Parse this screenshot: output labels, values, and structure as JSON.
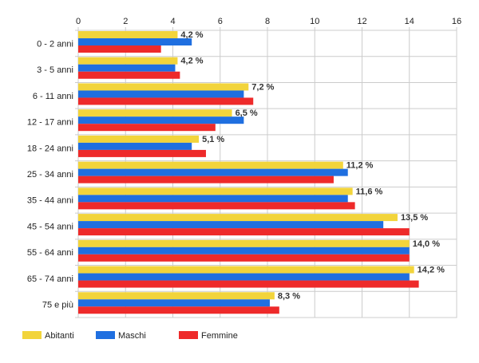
{
  "chart_data": {
    "type": "bar",
    "orientation": "horizontal",
    "categories": [
      "0 - 2 anni",
      "3 - 5 anni",
      "6 - 11 anni",
      "12 - 17 anni",
      "18 - 24 anni",
      "25 - 34 anni",
      "35 - 44 anni",
      "45 - 54 anni",
      "55 - 64 anni",
      "65 - 74 anni",
      "75 e più"
    ],
    "series": [
      {
        "name": "Abitanti",
        "color": "#f2d43b",
        "values": [
          4.2,
          4.2,
          7.2,
          6.5,
          5.1,
          11.2,
          11.6,
          13.5,
          14.0,
          14.2,
          8.3
        ]
      },
      {
        "name": "Maschi",
        "color": "#1f6fe0",
        "values": [
          4.8,
          4.1,
          7.0,
          7.0,
          4.8,
          11.4,
          11.4,
          12.9,
          14.0,
          14.0,
          8.1
        ]
      },
      {
        "name": "Femmine",
        "color": "#ee2a2a",
        "values": [
          3.5,
          4.3,
          7.4,
          5.8,
          5.4,
          10.8,
          11.7,
          14.0,
          14.0,
          14.4,
          8.5
        ]
      }
    ],
    "data_labels": [
      "4,2 %",
      "4,2 %",
      "7,2 %",
      "6,5 %",
      "5,1 %",
      "11,2 %",
      "11,6 %",
      "13,5 %",
      "14,0 %",
      "14,2 %",
      "8,3 %"
    ],
    "x_ticks": [
      0,
      2,
      4,
      6,
      8,
      10,
      12,
      14,
      16
    ],
    "xlim": [
      0,
      16
    ],
    "title": "",
    "xlabel": "",
    "ylabel": "",
    "grid": true,
    "legend_position": "bottom-left"
  }
}
